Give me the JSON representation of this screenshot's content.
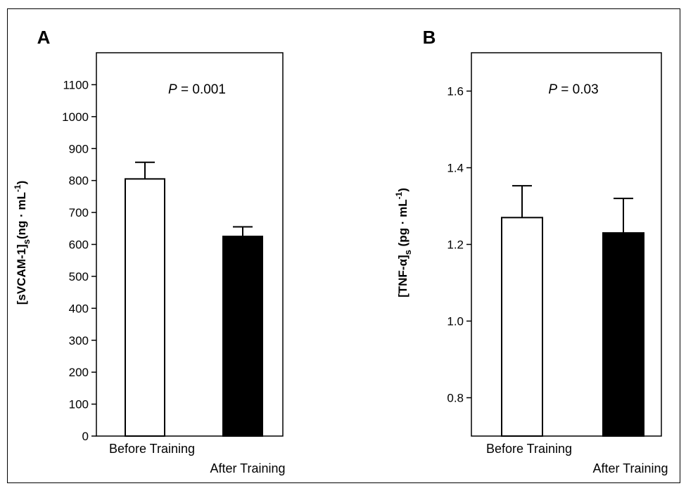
{
  "chart_data": [
    {
      "type": "bar",
      "panel": "A",
      "categories": [
        "Before Training",
        "After Training"
      ],
      "values": [
        805,
        625
      ],
      "errors": [
        52,
        30
      ],
      "bar_colors": [
        "#ffffff",
        "#000000"
      ],
      "annotation_prefix": "P",
      "annotation_value": " = 0.001",
      "ylabel_main": "[sVCAM-1]",
      "ylabel_sub": "s",
      "ylabel_unit": "(ng · mL",
      "ylabel_exp": "-1",
      "ylabel_close": ")",
      "ylim": [
        0,
        1200
      ],
      "yticks": [
        "0",
        "100",
        "200",
        "300",
        "400",
        "500",
        "600",
        "700",
        "800",
        "900",
        "1000",
        "1100"
      ],
      "ytick_values": [
        0,
        100,
        200,
        300,
        400,
        500,
        600,
        700,
        800,
        900,
        1000,
        1100
      ],
      "grid": false
    },
    {
      "type": "bar",
      "panel": "B",
      "categories": [
        "Before Training",
        "After Training"
      ],
      "values": [
        1.27,
        1.23
      ],
      "errors": [
        0.083,
        0.09
      ],
      "bar_colors": [
        "#ffffff",
        "#000000"
      ],
      "annotation_prefix": "P",
      "annotation_value": " = 0.03",
      "ylabel_main": "[TNF-α]",
      "ylabel_sub": "s",
      "ylabel_unit": " (pg · mL",
      "ylabel_exp": "-1",
      "ylabel_close": ")",
      "ylim": [
        0.7,
        1.7
      ],
      "yticks": [
        "0.8",
        "1.0",
        "1.2",
        "1.4",
        "1.6"
      ],
      "ytick_values": [
        0.8,
        1.0,
        1.2,
        1.4,
        1.6
      ],
      "grid": false
    }
  ]
}
